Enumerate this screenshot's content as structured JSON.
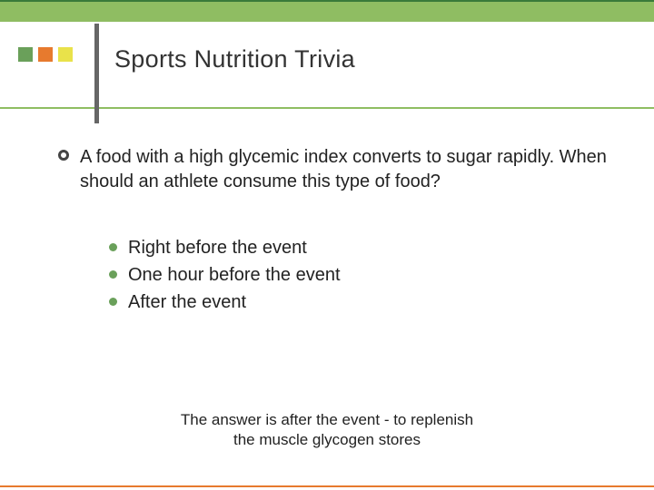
{
  "header": {
    "band_color": "#8fbd62",
    "top_line_color": "#3a7a3a",
    "title": "Sports Nutrition Trivia",
    "title_fontsize": 27,
    "title_color": "#333333",
    "squares": [
      "#6aa05a",
      "#e77a2e",
      "#e9e24a"
    ],
    "square_size": 16,
    "vert_line_color": "#666666"
  },
  "question": {
    "bullet_ring_color": "#444444",
    "text": "A food with a high glycemic index converts to sugar rapidly.  When should an athlete consume this type of food?",
    "fontsize": 20,
    "text_color": "#222222"
  },
  "options": {
    "dot_color": "#6aa05a",
    "fontsize": 20,
    "items": [
      {
        "label": "Right before the event"
      },
      {
        "label": "One hour before the event"
      },
      {
        "label": "After the event"
      }
    ]
  },
  "answer": {
    "line1": "The answer is after the event - to replenish",
    "line2": "the muscle glycogen stores",
    "fontsize": 17,
    "color": "#222222"
  },
  "footer": {
    "line_color": "#e77a2e"
  }
}
